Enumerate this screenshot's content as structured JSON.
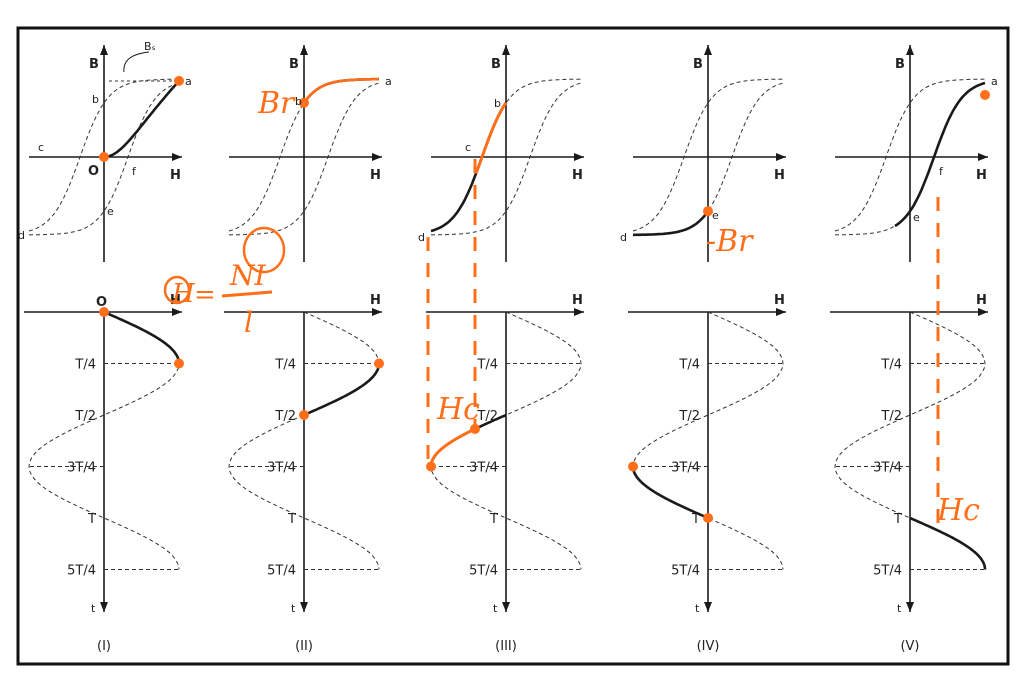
{
  "colors": {
    "ink": "#1a1a1a",
    "dash": "#333333",
    "accent": "#ff6f1a",
    "frame": "#111111"
  },
  "labels": {
    "B": "B",
    "H": "H",
    "t": "t",
    "Bs": "Bₛ",
    "a": "a",
    "b": "b",
    "c": "c",
    "d": "d",
    "e": "e",
    "f": "f",
    "O": "O",
    "T4": "T/4",
    "T2": "T/2",
    "T34": "3T/4",
    "T": "T",
    "T54": "5T/4"
  },
  "panels": [
    {
      "caption": "(I)"
    },
    {
      "caption": "(II)"
    },
    {
      "caption": "(III)"
    },
    {
      "caption": "(IV)"
    },
    {
      "caption": "(V)"
    }
  ],
  "annotations": {
    "br": "Br",
    "neg_br": "-Br",
    "hc_iii": "Hc",
    "hc_v": "Hc",
    "h_formula_lhs": "H",
    "h_formula_eq": "=",
    "h_formula_num": "NI",
    "h_formula_den": "l"
  }
}
